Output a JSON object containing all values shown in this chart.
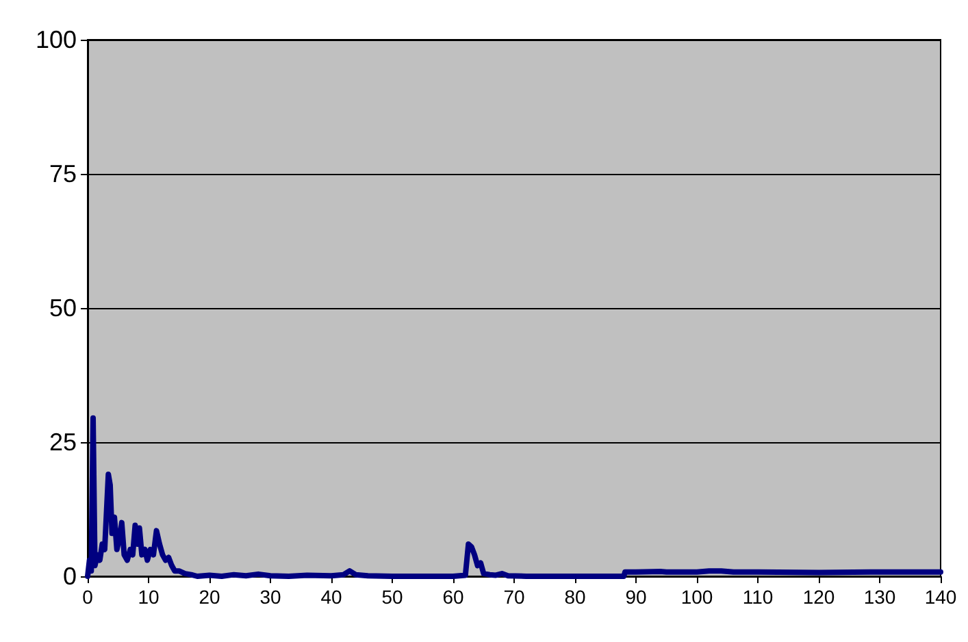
{
  "chart_data": {
    "type": "line",
    "x": [
      0,
      0.3,
      0.6,
      0.9,
      1.2,
      1.6,
      2.0,
      2.4,
      2.8,
      3.1,
      3.4,
      3.7,
      4.0,
      4.4,
      4.8,
      5.2,
      5.6,
      6.0,
      6.5,
      7.0,
      7.4,
      7.8,
      8.2,
      8.5,
      8.9,
      9.4,
      9.8,
      10.3,
      10.8,
      11.3,
      11.8,
      12.3,
      12.8,
      13.3,
      13.8,
      14.3,
      15,
      16,
      17,
      18,
      20,
      22,
      24,
      26,
      28,
      30,
      33,
      36,
      40,
      42,
      43,
      44,
      46,
      50,
      55,
      60,
      62,
      62.5,
      63,
      63.5,
      64,
      64.5,
      65,
      66,
      67,
      68,
      69,
      72,
      80,
      88,
      88.2,
      90,
      94,
      95,
      100,
      102,
      104,
      106,
      110,
      120,
      130,
      140
    ],
    "series": [
      {
        "color": "#000080",
        "values": [
          0,
          3,
          1,
          29.5,
          2,
          4,
          3,
          6,
          5,
          12,
          19,
          17,
          8,
          11,
          5,
          7,
          10,
          4,
          3,
          5,
          4,
          9.5,
          6,
          9,
          4,
          5,
          3,
          5,
          4,
          8.5,
          6,
          4,
          3,
          3.5,
          2,
          1,
          1,
          0.5,
          0.3,
          0,
          0.2,
          0,
          0.3,
          0.1,
          0.4,
          0.1,
          0,
          0.2,
          0.1,
          0.3,
          1,
          0.3,
          0.1,
          0,
          0,
          0,
          0.2,
          6,
          5.5,
          4,
          2,
          2.5,
          0.5,
          0.3,
          0.2,
          0.5,
          0.1,
          0,
          0,
          0,
          0.8,
          0.8,
          0.9,
          0.8,
          0.8,
          1,
          1,
          0.8,
          0.8,
          0.7,
          0.8,
          0.8
        ]
      }
    ],
    "xlim": [
      0,
      140
    ],
    "xticks": [
      0,
      10,
      20,
      30,
      40,
      50,
      60,
      70,
      80,
      90,
      100,
      110,
      120,
      130,
      140
    ],
    "ylim": [
      0,
      100
    ],
    "yticks": [
      0,
      25,
      50,
      75,
      100
    ],
    "grid": "y",
    "marker": "none",
    "line_style": "solid"
  }
}
